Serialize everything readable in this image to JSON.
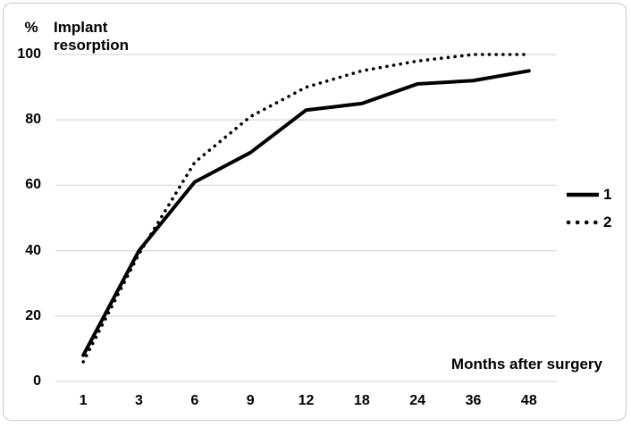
{
  "figure": {
    "y_axis_unit": "%",
    "title_line1": "Implant",
    "title_line2": "resorption",
    "x_axis_title": "Months after surgery"
  },
  "chart_data": {
    "type": "line",
    "title": "Implant resorption",
    "ylabel": "%",
    "xlabel": "Months after surgery",
    "categories": [
      "1",
      "3",
      "6",
      "9",
      "12",
      "18",
      "24",
      "36",
      "48"
    ],
    "y_ticks": [
      "100",
      "80",
      "60",
      "40",
      "20",
      "0"
    ],
    "ylim": [
      0,
      100
    ],
    "y_tick_step": 20,
    "grid": "horizontal",
    "legend_position": "right",
    "series": [
      {
        "name": "1",
        "style": "solid",
        "values": [
          8,
          40,
          61,
          70,
          83,
          85,
          91,
          92,
          95
        ]
      },
      {
        "name": "2",
        "style": "dotted",
        "values": [
          6,
          39,
          67,
          81,
          90,
          95,
          98,
          100,
          100
        ]
      }
    ],
    "colors": {
      "line": "#000000",
      "gridline": "#d9d9d9",
      "text": "#000000"
    }
  }
}
